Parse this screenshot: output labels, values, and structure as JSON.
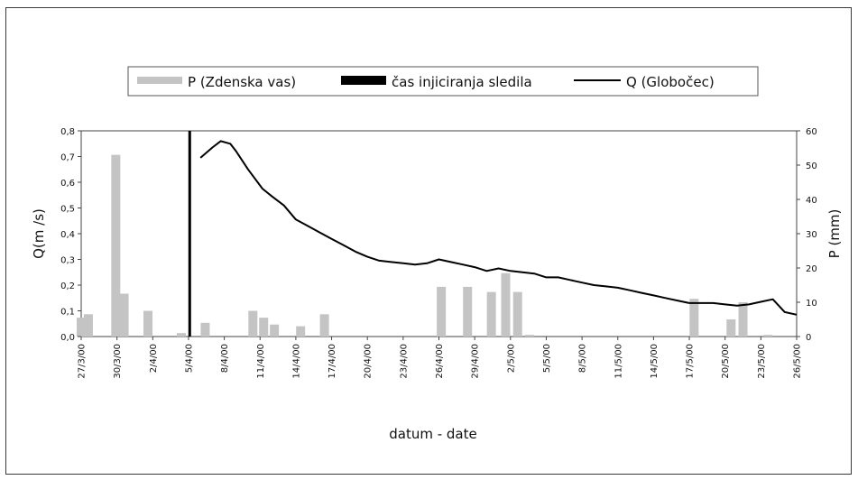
{
  "chart_data": {
    "type": "bar+line",
    "xlabel": "datum - date",
    "ylabel_left": "Q(m /s)",
    "ylabel_right": "P (mm)",
    "ylim_left": [
      0,
      0.8
    ],
    "ylim_right": [
      0,
      60
    ],
    "yticks_left": [
      "0,0",
      "0,1",
      "0,2",
      "0,3",
      "0,4",
      "0,5",
      "0,6",
      "0,7",
      "0,8"
    ],
    "yticks_right": [
      "0",
      "10",
      "20",
      "30",
      "40",
      "50",
      "60"
    ],
    "x_range_days": [
      0,
      60
    ],
    "x_ticks": [
      {
        "day": 0,
        "label": "27/3/00"
      },
      {
        "day": 3,
        "label": "30/3/00"
      },
      {
        "day": 6,
        "label": "2/4/00"
      },
      {
        "day": 9,
        "label": "5/4/00"
      },
      {
        "day": 12,
        "label": "8/4/00"
      },
      {
        "day": 15,
        "label": "11/4/00"
      },
      {
        "day": 18,
        "label": "14/4/00"
      },
      {
        "day": 21,
        "label": "17/4/00"
      },
      {
        "day": 24,
        "label": "20/4/00"
      },
      {
        "day": 27,
        "label": "23/4/00"
      },
      {
        "day": 30,
        "label": "26/4/00"
      },
      {
        "day": 33,
        "label": "29/4/00"
      },
      {
        "day": 36,
        "label": "2/5/00"
      },
      {
        "day": 39,
        "label": "5/5/00"
      },
      {
        "day": 42,
        "label": "8/5/00"
      },
      {
        "day": 45,
        "label": "11/5/00"
      },
      {
        "day": 48,
        "label": "14/5/00"
      },
      {
        "day": 51,
        "label": "17/5/00"
      },
      {
        "day": 54,
        "label": "20/5/00"
      },
      {
        "day": 57,
        "label": "23/5/00"
      },
      {
        "day": 60,
        "label": "26/5/00"
      }
    ],
    "legend": {
      "position": "top",
      "entries": [
        {
          "label": "P (Zdenska vas)",
          "color": "#c4c4c4",
          "kind": "bar"
        },
        {
          "label": "čas injiciranja sledila",
          "color": "#000000",
          "kind": "thickline"
        },
        {
          "label": "Q (Globočec)",
          "color": "#000000",
          "kind": "line"
        }
      ]
    },
    "precipitation": {
      "name": "P (Zdenska vas)",
      "days": [
        0,
        0.6,
        2.9,
        3.6,
        5.6,
        8.4,
        10.4,
        14.4,
        15.3,
        16.2,
        18.4,
        20.4,
        30.2,
        32.4,
        34.4,
        35.6,
        36.6,
        37.6,
        51.4,
        54.5,
        55.5,
        57.6
      ],
      "values": [
        5.5,
        6.5,
        53,
        12.5,
        7.5,
        1,
        4,
        7.5,
        5.5,
        3.5,
        3,
        6.5,
        14.5,
        14.5,
        13,
        18.5,
        13,
        0.5,
        11,
        5,
        10,
        0.5
      ]
    },
    "injection": {
      "name": "čas injiciranja sledila",
      "day": 9.1
    },
    "discharge": {
      "name": "Q (Globočec)",
      "x": [
        10,
        11,
        11.7,
        12.5,
        13,
        14,
        15.2,
        16,
        17,
        18,
        19,
        20,
        21,
        22,
        23,
        24,
        25,
        26,
        27,
        28,
        29,
        30,
        31,
        32,
        33,
        34,
        35,
        36,
        37,
        38,
        39,
        40,
        41,
        42,
        43,
        44,
        45,
        46,
        47,
        48,
        49,
        50,
        51,
        52,
        53,
        54,
        55,
        56,
        57,
        58,
        59,
        60
      ],
      "y": [
        0.695,
        0.735,
        0.76,
        0.75,
        0.72,
        0.65,
        0.575,
        0.545,
        0.51,
        0.455,
        0.43,
        0.405,
        0.38,
        0.355,
        0.33,
        0.31,
        0.295,
        0.29,
        0.285,
        0.28,
        0.285,
        0.3,
        0.29,
        0.28,
        0.27,
        0.255,
        0.265,
        0.255,
        0.25,
        0.245,
        0.23,
        0.23,
        0.22,
        0.21,
        0.2,
        0.195,
        0.19,
        0.18,
        0.17,
        0.16,
        0.15,
        0.14,
        0.13,
        0.13,
        0.13,
        0.125,
        0.12,
        0.125,
        0.135,
        0.145,
        0.095,
        0.085
      ]
    }
  }
}
